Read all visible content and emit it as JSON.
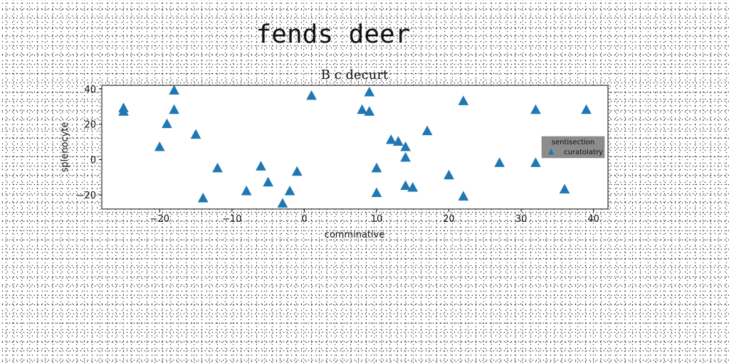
{
  "suptitle": "fends deer",
  "chart_data": {
    "type": "scatter",
    "title": "B c decurt",
    "xlabel": "comminative",
    "ylabel": "splenocyte",
    "xlim": [
      -28,
      42
    ],
    "ylim": [
      -28,
      42
    ],
    "xticks": [
      -20,
      -10,
      0,
      10,
      20,
      30,
      40
    ],
    "xtick_labels": [
      "−20",
      "−10",
      "0",
      "10",
      "20",
      "30",
      "40"
    ],
    "yticks": [
      -20,
      0,
      20,
      40
    ],
    "ytick_labels": [
      "−20",
      "0",
      "20",
      "40"
    ],
    "grid": false,
    "legend": {
      "title": "sentisection",
      "placement": "center-right"
    },
    "series": [
      {
        "name": "curatolatry",
        "marker": "triangle",
        "color": "#1f77b4",
        "points": [
          [
            -25,
            29
          ],
          [
            -25,
            27
          ],
          [
            -18,
            39
          ],
          [
            -18,
            28
          ],
          [
            -19,
            20
          ],
          [
            -20,
            7
          ],
          [
            -15,
            14
          ],
          [
            -12,
            -5
          ],
          [
            -14,
            -22
          ],
          [
            -8,
            -18
          ],
          [
            -6,
            -4
          ],
          [
            -5,
            -13
          ],
          [
            -3,
            -25
          ],
          [
            -2,
            -18
          ],
          [
            -1,
            -7
          ],
          [
            1,
            36
          ],
          [
            8,
            28
          ],
          [
            9,
            38
          ],
          [
            9,
            27
          ],
          [
            10,
            -5
          ],
          [
            10,
            -19
          ],
          [
            12,
            11
          ],
          [
            13,
            10
          ],
          [
            14,
            7
          ],
          [
            14,
            1
          ],
          [
            14,
            -15
          ],
          [
            15,
            -16
          ],
          [
            17,
            16
          ],
          [
            20,
            -9
          ],
          [
            22,
            33
          ],
          [
            22,
            -21
          ],
          [
            27,
            -2
          ],
          [
            32,
            28
          ],
          [
            32,
            -2
          ],
          [
            36,
            -17
          ],
          [
            39,
            28
          ]
        ]
      }
    ]
  }
}
